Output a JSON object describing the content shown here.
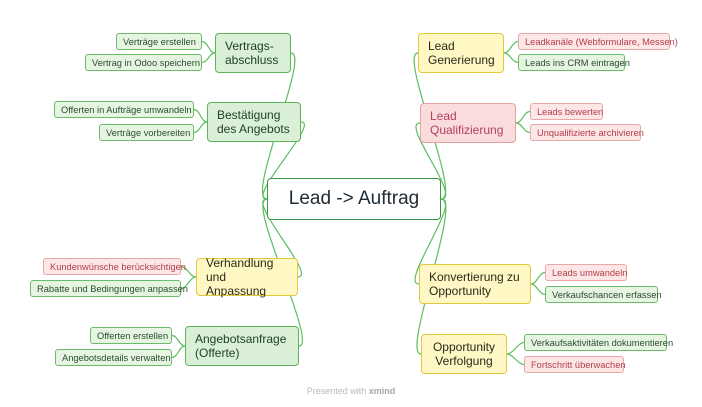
{
  "central": {
    "label": "Lead -> Auftrag"
  },
  "left": [
    {
      "label": "Vertrags-\nabschluss",
      "color": "green",
      "subs": [
        {
          "label": "Verträge erstellen",
          "color": "green"
        },
        {
          "label": "Vertrag in Odoo speichern",
          "color": "green"
        }
      ]
    },
    {
      "label": "Bestätigung\ndes Angebots",
      "color": "green",
      "subs": [
        {
          "label": "Offerten in Aufträge umwandeln",
          "color": "green"
        },
        {
          "label": "Verträge vorbereiten",
          "color": "green"
        }
      ]
    },
    {
      "label": "Verhandlung\nund Anpassung",
      "color": "yellow",
      "subs": [
        {
          "label": "Kundenwünsche berücksichtigen",
          "color": "pink"
        },
        {
          "label": "Rabatte und Bedingungen anpassen",
          "color": "green"
        }
      ]
    },
    {
      "label": "Angebotsanfrage\n(Offerte)",
      "color": "green",
      "subs": [
        {
          "label": "Offerten erstellen",
          "color": "green"
        },
        {
          "label": "Angebotsdetails verwalten",
          "color": "green"
        }
      ]
    }
  ],
  "right": [
    {
      "label": "Lead\nGenerierung",
      "color": "yellow",
      "subs": [
        {
          "label": "Leadkanäle (Webformulare, Messen)",
          "color": "pink"
        },
        {
          "label": "Leads ins CRM eintragen",
          "color": "green"
        }
      ]
    },
    {
      "label": "Lead\nQualifizierung",
      "color": "pink",
      "subs": [
        {
          "label": "Leads bewerten",
          "color": "pink"
        },
        {
          "label": "Unqualifizierte archivieren",
          "color": "pink"
        }
      ]
    },
    {
      "label": "Konvertierung zu\nOpportunity",
      "color": "yellow",
      "subs": [
        {
          "label": "Leads umwandeln",
          "color": "pink"
        },
        {
          "label": "Verkaufschancen erfassen",
          "color": "green"
        }
      ]
    },
    {
      "label": "Opportunity\nVerfolgung",
      "color": "yellow",
      "subs": [
        {
          "label": "Verkaufsaktivitäten dokumentieren",
          "color": "green"
        },
        {
          "label": "Fortschritt überwachen",
          "color": "pink"
        }
      ]
    }
  ],
  "footer": {
    "prefix": "Presented with",
    "brand": "xmind"
  }
}
